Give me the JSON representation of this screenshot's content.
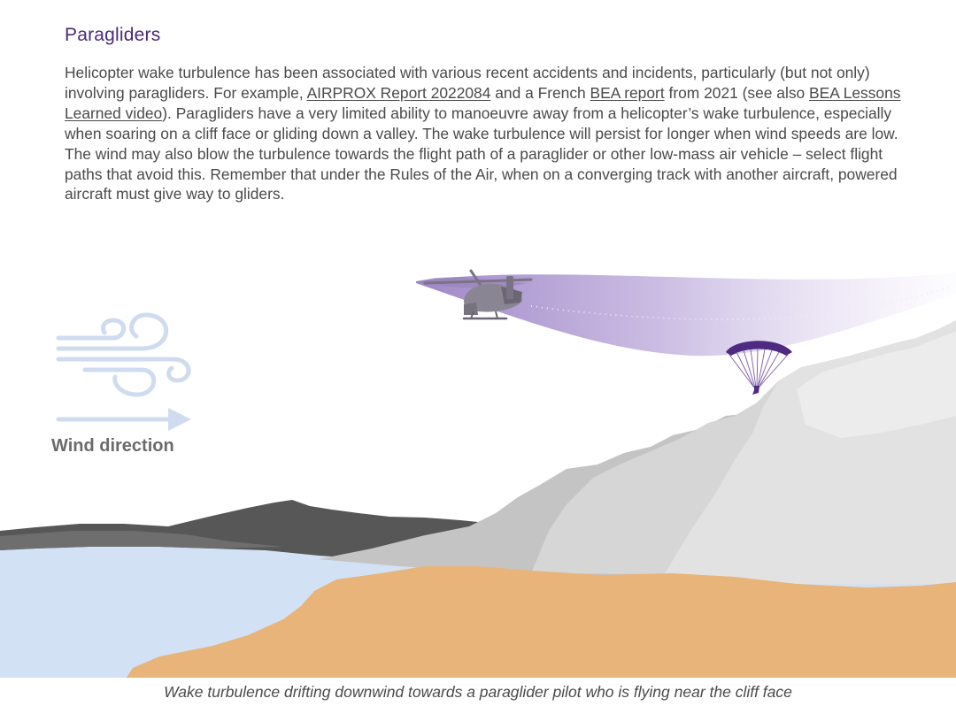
{
  "section": {
    "title": "Paragliders",
    "body_part1": "Helicopter wake turbulence has been associated with various recent accidents and incidents, particularly (but not only) involving paragliders. For example, ",
    "link_airprox": "AIRPROX Report 2022084",
    "body_part2": " and a French ",
    "link_bea": "BEA report",
    "body_part3": " from 2021 (see also ",
    "link_bea_video": "BEA Lessons Learned video",
    "body_part4": "). Paragliders have a very limited ability to manoeuvre away from a helicopter’s wake turbulence, especially when soaring on a cliff face or gliding down a valley. The wake turbulence will persist for longer when wind speeds are low. The wind may also blow the turbulence towards the flight path of a paraglider or other low-mass air vehicle – select flight paths that avoid this. Remember that under the Rules of the Air, when on a converging track with another aircraft, powered aircraft must give way to gliders."
  },
  "illustration": {
    "wind_label": "Wind direction",
    "icons": [
      "wind-gust-icon",
      "wind-arrow-icon",
      "helicopter-icon",
      "paraglider-icon"
    ],
    "colors": {
      "wake": "#9a80c4",
      "wind": "#cfdcf0",
      "water": "#d3e1f4",
      "beach": "#e8b47a",
      "cliff_light": "#dedede",
      "cliff_mid": "#c4c4c4",
      "hills": "#575757",
      "paraglider": "#4e2a82"
    }
  },
  "caption": "Wake turbulence drifting downwind towards a paraglider pilot who is flying near the cliff face"
}
